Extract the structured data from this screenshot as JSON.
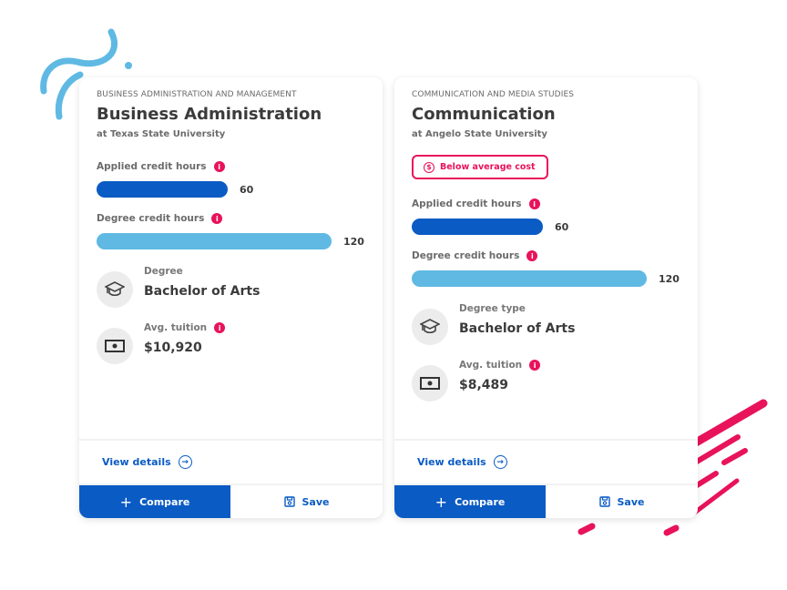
{
  "colors": {
    "primary": "#0a5bc4",
    "light_bar": "#5fb9e3",
    "accent": "#e8135a"
  },
  "bar_max": 120,
  "cards": [
    {
      "category": "BUSINESS ADMINISTRATION AND MANAGEMENT",
      "title": "Business Administration",
      "school": "at Texas State University",
      "applied_label": "Applied credit hours",
      "applied": 60,
      "degree_hours_label": "Degree credit hours",
      "degree_hours": 120,
      "degree_label": "Degree",
      "degree": "Bachelor of Arts",
      "tuition_label": "Avg. tuition",
      "tuition": "$10,920",
      "view_details": "View details",
      "compare": "Compare",
      "save": "Save"
    },
    {
      "category": "COMMUNICATION AND MEDIA STUDIES",
      "title": "Communication",
      "school": "at Angelo State University",
      "badge": "Below average cost",
      "applied_label": "Applied credit hours",
      "applied": 60,
      "degree_hours_label": "Degree credit hours",
      "degree_hours": 120,
      "degree_label": "Degree type",
      "degree": "Bachelor of Arts",
      "tuition_label": "Avg. tuition",
      "tuition": "$8,489",
      "view_details": "View details",
      "compare": "Compare",
      "save": "Save"
    }
  ]
}
